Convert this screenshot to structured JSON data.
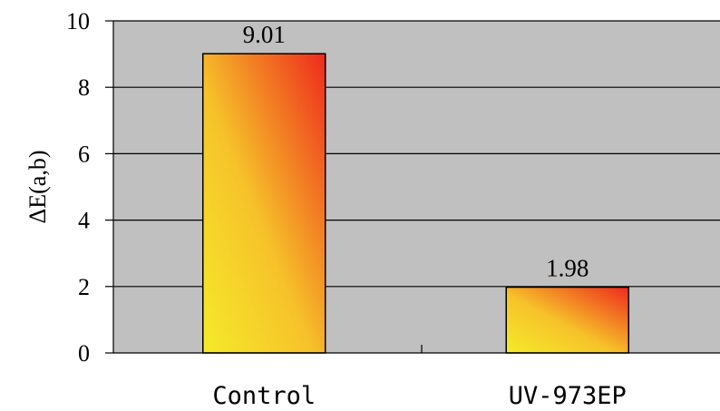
{
  "chart_data": {
    "type": "bar",
    "categories": [
      "Control",
      "UV-973EP"
    ],
    "values": [
      9.01,
      1.98
    ],
    "data_labels": [
      "9.01",
      "1.98"
    ],
    "title": "",
    "xlabel": "",
    "ylabel": "ΔE(a,b)",
    "ylim": [
      0,
      10
    ],
    "yticks": [
      "0",
      "2",
      "4",
      "6",
      "8",
      "10"
    ],
    "grid": true,
    "legend": "none",
    "colors": {
      "plot_background": "#c0c0c0",
      "bar_gradient_start": "#f5ea2a",
      "bar_gradient_end": "#ee2a1c",
      "gridline": "#000000"
    }
  }
}
